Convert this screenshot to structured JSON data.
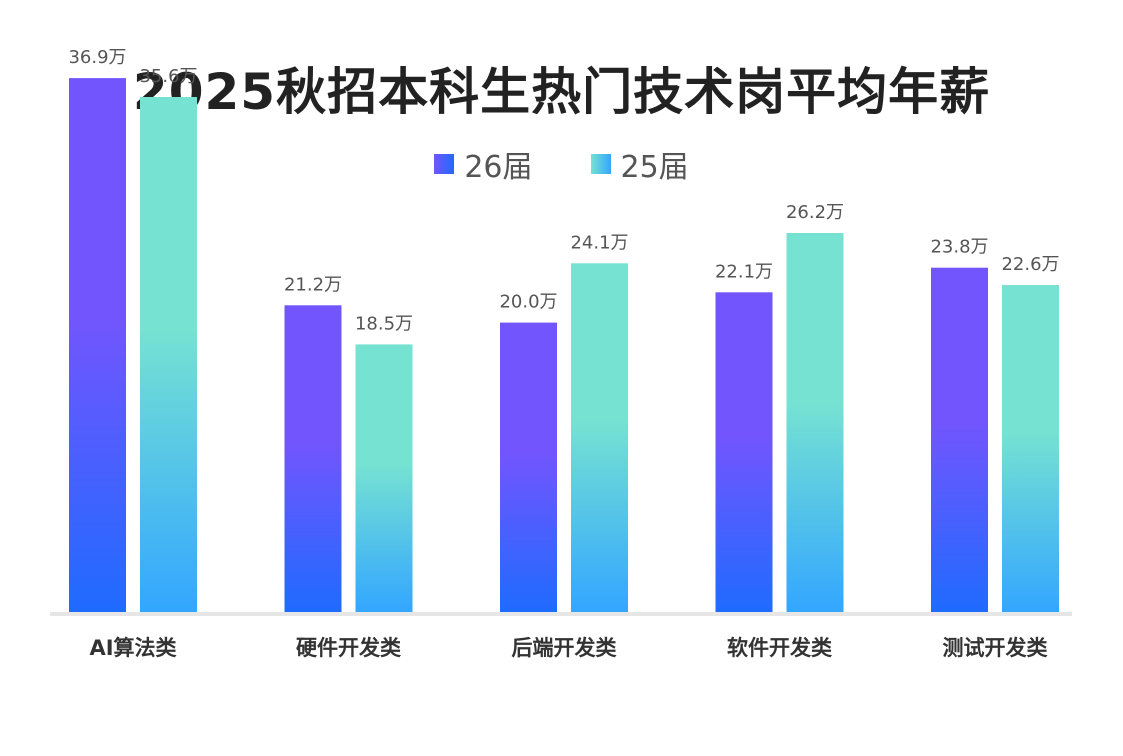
{
  "chart_data": {
    "type": "bar",
    "title": "2025秋招本科生热门技术岗平均年薪",
    "categories": [
      "AI算法类",
      "硬件开发类",
      "后端开发类",
      "软件开发类",
      "测试开发类"
    ],
    "series": [
      {
        "name": "26届",
        "values": [
          36.9,
          21.2,
          20.0,
          22.1,
          23.8
        ],
        "labels": [
          "36.9万",
          "21.2万",
          "20.0万",
          "22.1万",
          "23.8万"
        ],
        "color_top": "#7255fd",
        "color_bottom": "#1f6bff"
      },
      {
        "name": "25届",
        "values": [
          35.6,
          18.5,
          24.1,
          26.2,
          22.6
        ],
        "labels": [
          "35.6万",
          "18.5万",
          "24.1万",
          "26.2万",
          "22.6万"
        ],
        "color_top": "#76e2d2",
        "color_bottom": "#33a6ff"
      }
    ],
    "ylim": [
      0,
      38.5
    ],
    "grid": false,
    "legend_position": "top-center",
    "xlabel": "",
    "ylabel": ""
  }
}
